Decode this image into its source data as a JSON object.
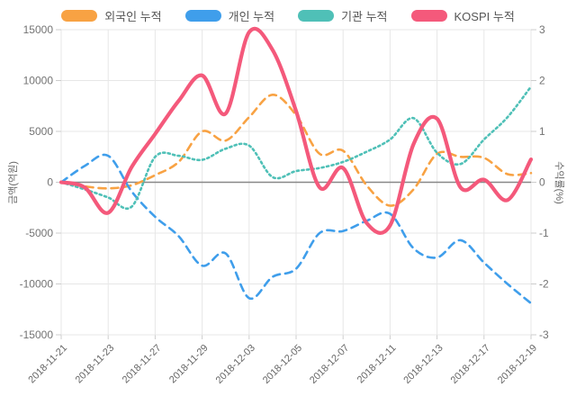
{
  "legend": {
    "items": [
      {
        "label": "외국인 누적",
        "color": "#f8a243",
        "line_style": "dashed"
      },
      {
        "label": "개인 누적",
        "color": "#3f9eeb",
        "line_style": "dashed"
      },
      {
        "label": "기관 누적",
        "color": "#4fc0b7",
        "line_style": "dotted"
      },
      {
        "label": "KOSPI 누적",
        "color": "#f4597b",
        "line_style": "solid"
      }
    ]
  },
  "axes": {
    "left": {
      "title": "금액(억원)",
      "tick_labels": [
        "15000",
        "10000",
        "5000",
        "0",
        "-5000",
        "-10000",
        "-15000"
      ]
    },
    "right": {
      "title": "수익률(%)",
      "tick_labels": [
        "3",
        "2",
        "1",
        "0",
        "-1",
        "-2",
        "-3"
      ]
    },
    "x": {
      "tick_labels": [
        "2018-11-21",
        "2018-11-23",
        "2018-11-27",
        "2018-11-29",
        "2018-12-03",
        "2018-12-05",
        "2018-12-07",
        "2018-12-11",
        "2018-12-13",
        "2018-12-17",
        "2018-12-19"
      ]
    }
  },
  "chart_data": {
    "type": "line",
    "n_points": 21,
    "x_tick_labels": [
      "2018-11-21",
      "2018-11-23",
      "2018-11-27",
      "2018-11-29",
      "2018-12-03",
      "2018-12-05",
      "2018-12-07",
      "2018-12-11",
      "2018-12-13",
      "2018-12-17",
      "2018-12-19"
    ],
    "x_tick_indices": [
      0,
      2,
      4,
      6,
      8,
      10,
      12,
      14,
      16,
      18,
      20
    ],
    "left_ylabel": "금액(억원)",
    "right_ylabel": "수익률(%)",
    "left_ylim": [
      -15000,
      15000
    ],
    "right_ylim": [
      -3,
      3
    ],
    "left_yticks": [
      15000,
      10000,
      5000,
      0,
      -5000,
      -10000,
      -15000
    ],
    "right_yticks": [
      3,
      2,
      1,
      0,
      -1,
      -2,
      -3
    ],
    "grid": true,
    "zero_line": true,
    "series": [
      {
        "name": "외국인 누적",
        "axis": "left",
        "color": "#f8a243",
        "line_style": "dashed",
        "values": [
          0,
          -400,
          -600,
          -300,
          700,
          2000,
          5000,
          4100,
          6400,
          8600,
          6600,
          2800,
          3100,
          -300,
          -2300,
          -700,
          2800,
          2500,
          2400,
          800,
          900
        ]
      },
      {
        "name": "개인 누적",
        "axis": "left",
        "color": "#3f9eeb",
        "line_style": "dashed",
        "values": [
          0,
          1600,
          2600,
          -900,
          -3400,
          -5300,
          -8200,
          -7000,
          -11400,
          -9300,
          -8500,
          -5000,
          -4800,
          -3800,
          -3100,
          -6500,
          -7400,
          -5700,
          -7900,
          -10000,
          -11900
        ]
      },
      {
        "name": "기관 누적",
        "axis": "left",
        "color": "#4fc0b7",
        "line_style": "dotted",
        "values": [
          0,
          -700,
          -1500,
          -2400,
          2500,
          2600,
          2200,
          3300,
          3600,
          500,
          1100,
          1400,
          2000,
          3000,
          4200,
          6300,
          2900,
          1800,
          4200,
          6400,
          9400
        ]
      },
      {
        "name": "KOSPI 누적",
        "axis": "right",
        "color": "#f4597b",
        "line_style": "solid",
        "values": [
          0,
          -0.1,
          -0.6,
          0.3,
          0.95,
          1.6,
          2.1,
          1.35,
          2.95,
          2.6,
          1.4,
          -0.1,
          0.28,
          -0.8,
          -0.85,
          0.75,
          1.25,
          -0.1,
          0.05,
          -0.35,
          0.45
        ]
      }
    ]
  }
}
